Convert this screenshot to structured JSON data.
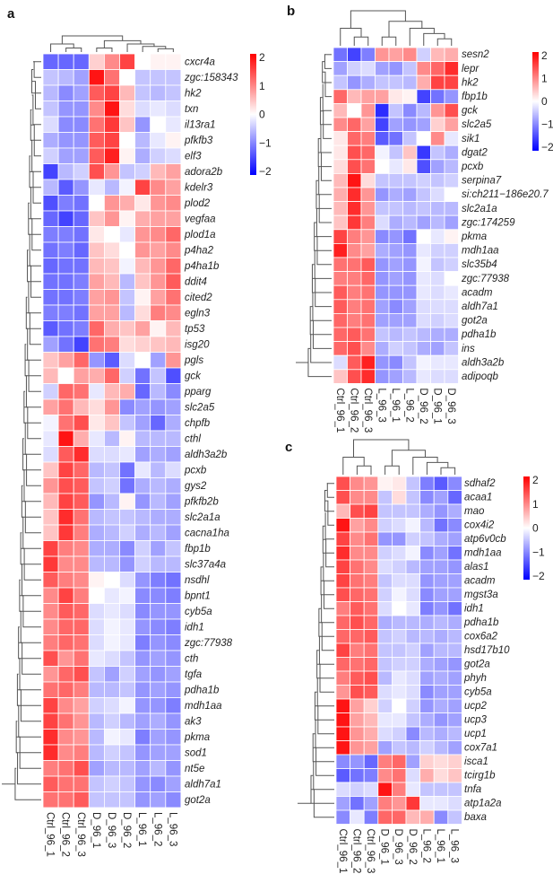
{
  "chart_data": [
    {
      "type": "heatmap",
      "panel": "a",
      "title": "a",
      "color_scale": {
        "min": -2,
        "max": 2,
        "ticks": [
          2,
          1,
          0,
          -1,
          -2
        ],
        "low": "#0000ff",
        "mid": "#ffffff",
        "high": "#ff0000"
      },
      "columns": [
        "Ctrl_96_1",
        "Ctrl_96_2",
        "Ctrl_96_3",
        "D_96_1",
        "D_96_3",
        "D_96_2",
        "L_96_1",
        "L_96_2",
        "L_96_3"
      ],
      "rows": [
        "cxcr4a",
        "zgc:158343",
        "hk2",
        "txn",
        "il13ra1",
        "pfkfb3",
        "elf3",
        "adora2b",
        "kdelr3",
        "plod2",
        "vegfaa",
        "plod1a",
        "p4ha2",
        "p4ha1b",
        "ddit4",
        "cited2",
        "egln3",
        "tp53",
        "isg20",
        "pgls",
        "gck",
        "pparg",
        "slc2a5",
        "chpfb",
        "cthl",
        "aldh3a2b",
        "pcxb",
        "gys2",
        "pfkfb2b",
        "slc2a1a",
        "cacna1ha",
        "fbp1b",
        "slc37a4a",
        "nsdhl",
        "bpnt1",
        "cyb5a",
        "idh1",
        "zgc:77938",
        "cth",
        "tgfa",
        "pdha1b",
        "mdh1aa",
        "ak3",
        "pkma",
        "sod1",
        "nt5e",
        "aldh7a1",
        "got2a"
      ],
      "values": [
        [
          -1.3,
          -1.3,
          -1.3,
          0.4,
          1.0,
          1.6,
          0.0,
          0.1,
          0.1
        ],
        [
          -0.5,
          -0.6,
          -0.8,
          2.0,
          1.2,
          0.0,
          -0.5,
          -0.5,
          -0.5
        ],
        [
          -0.6,
          -1.0,
          -0.8,
          1.4,
          1.6,
          0.6,
          -0.5,
          -0.6,
          -0.5
        ],
        [
          -0.5,
          -0.9,
          -0.9,
          1.0,
          2.1,
          0.3,
          -0.3,
          -0.2,
          -0.3
        ],
        [
          -0.3,
          -1.0,
          -1.0,
          1.2,
          1.7,
          0.5,
          -0.9,
          0.0,
          -0.2
        ],
        [
          -0.7,
          -0.9,
          -0.9,
          1.4,
          1.6,
          0.0,
          -0.6,
          -0.2,
          0.1
        ],
        [
          -0.4,
          -0.8,
          -0.8,
          1.4,
          1.9,
          0.1,
          -0.7,
          -0.4,
          -0.3
        ],
        [
          -1.6,
          -0.6,
          -0.4,
          1.5,
          0.9,
          -0.5,
          -0.4,
          0.6,
          0.8
        ],
        [
          -0.6,
          -1.4,
          -0.9,
          -0.2,
          -0.6,
          -0.1,
          1.6,
          1.0,
          0.8
        ],
        [
          -1.5,
          -1.1,
          -1.2,
          0.0,
          0.9,
          0.7,
          0.2,
          0.9,
          1.0
        ],
        [
          -1.3,
          -1.6,
          -1.3,
          0.5,
          0.9,
          0.1,
          0.7,
          0.8,
          0.8
        ],
        [
          -1.1,
          -1.1,
          -1.2,
          0.2,
          0.0,
          -0.2,
          0.9,
          1.0,
          1.3
        ],
        [
          -1.2,
          -1.1,
          -1.3,
          0.5,
          0.3,
          0.0,
          0.9,
          0.8,
          1.0
        ],
        [
          -1.3,
          -1.2,
          -1.2,
          0.6,
          0.5,
          -0.1,
          0.6,
          0.9,
          1.3
        ],
        [
          -1.2,
          -1.2,
          -1.1,
          0.8,
          0.6,
          -0.6,
          0.5,
          0.9,
          1.4
        ],
        [
          -1.2,
          -1.2,
          -1.1,
          0.8,
          0.9,
          -0.5,
          0.1,
          0.8,
          1.2
        ],
        [
          -1.1,
          -1.1,
          -1.2,
          0.8,
          0.8,
          -0.6,
          0.3,
          1.1,
          1.0
        ],
        [
          -1.4,
          -1.2,
          -1.1,
          1.3,
          0.7,
          0.5,
          0.8,
          0.1,
          0.6
        ],
        [
          -0.8,
          -1.2,
          -1.6,
          1.2,
          1.1,
          0.3,
          0.4,
          0.5,
          0.6
        ],
        [
          0.5,
          0.8,
          1.3,
          -0.9,
          -1.4,
          -0.3,
          0.0,
          -0.8,
          0.9
        ],
        [
          0.6,
          0.0,
          0.8,
          0.7,
          1.3,
          -0.4,
          -1.2,
          -0.5,
          -1.5
        ],
        [
          -0.4,
          1.3,
          1.2,
          -0.2,
          0.6,
          0.7,
          -1.3,
          -0.6,
          -1.0
        ],
        [
          0.8,
          1.2,
          0.6,
          0.3,
          0.9,
          -1.0,
          -0.8,
          -0.9,
          -0.8
        ],
        [
          -0.1,
          1.2,
          1.5,
          0.2,
          0.5,
          -0.5,
          -0.8,
          -1.3,
          -0.7
        ],
        [
          -0.2,
          2.0,
          0.7,
          -0.2,
          -0.6,
          0.1,
          -0.6,
          -0.6,
          -0.6
        ],
        [
          -0.3,
          1.4,
          1.8,
          -0.3,
          -0.3,
          -0.2,
          -0.8,
          -0.7,
          -0.8
        ],
        [
          0.5,
          1.6,
          1.3,
          -0.6,
          -0.5,
          -1.2,
          -0.2,
          -0.6,
          -0.3
        ],
        [
          0.9,
          1.5,
          1.4,
          -0.5,
          -0.4,
          -1.2,
          -0.7,
          -0.6,
          -0.7
        ],
        [
          0.6,
          1.6,
          1.4,
          -0.9,
          -0.6,
          0.1,
          -0.9,
          -0.6,
          -0.8
        ],
        [
          0.5,
          1.8,
          1.2,
          -0.6,
          -0.5,
          -0.5,
          -0.6,
          -0.7,
          -0.7
        ],
        [
          0.5,
          1.7,
          1.1,
          -0.7,
          -0.6,
          -0.4,
          -0.7,
          -0.6,
          -0.8
        ],
        [
          1.6,
          1.1,
          1.0,
          -0.7,
          -0.7,
          -1.0,
          -0.4,
          -0.8,
          -0.5
        ],
        [
          1.7,
          1.0,
          1.0,
          -0.6,
          -0.6,
          -0.9,
          -0.4,
          -0.6,
          -0.6
        ],
        [
          1.4,
          1.1,
          1.0,
          0.1,
          0.0,
          -0.3,
          -0.9,
          -1.1,
          -1.2
        ],
        [
          1.0,
          1.6,
          1.1,
          0.0,
          -0.2,
          -0.1,
          -1.0,
          -1.0,
          -1.1
        ],
        [
          1.0,
          1.4,
          1.3,
          -0.3,
          -0.2,
          -0.3,
          -1.0,
          -0.9,
          -0.9
        ],
        [
          1.0,
          1.3,
          1.3,
          -0.3,
          -0.1,
          -0.2,
          -0.9,
          -1.0,
          -1.1
        ],
        [
          1.1,
          1.3,
          1.2,
          -0.3,
          -0.1,
          -0.2,
          -1.1,
          -0.9,
          -1.0
        ],
        [
          1.5,
          0.9,
          1.2,
          -0.2,
          -0.3,
          -0.5,
          -0.9,
          -0.8,
          -0.9
        ],
        [
          0.9,
          1.3,
          1.5,
          -0.5,
          -0.8,
          -0.4,
          -0.8,
          -0.9,
          -0.8
        ],
        [
          1.2,
          1.3,
          1.1,
          -0.6,
          -0.6,
          -0.5,
          -0.9,
          -0.8,
          -0.9
        ],
        [
          1.6,
          1.0,
          0.8,
          -0.4,
          -0.3,
          -0.1,
          -0.9,
          -0.9,
          -1.1
        ],
        [
          1.6,
          1.2,
          0.9,
          -0.6,
          -0.4,
          -0.6,
          -0.8,
          -0.7,
          -0.9
        ],
        [
          1.8,
          1.0,
          0.9,
          -0.6,
          -0.1,
          -0.2,
          -1.1,
          -0.8,
          -0.9
        ],
        [
          1.8,
          1.0,
          1.1,
          -0.6,
          -0.4,
          -0.5,
          -0.9,
          -0.8,
          -0.8
        ],
        [
          1.1,
          1.2,
          1.5,
          -0.8,
          -0.6,
          -0.6,
          -0.8,
          -0.6,
          -0.9
        ],
        [
          1.4,
          1.2,
          1.2,
          -0.5,
          -0.4,
          -0.5,
          -0.9,
          -1.0,
          -0.8
        ],
        [
          1.2,
          1.2,
          1.4,
          -0.5,
          -0.5,
          -0.5,
          -0.9,
          -0.8,
          -1.0
        ]
      ]
    },
    {
      "type": "heatmap",
      "panel": "b",
      "title": "b",
      "color_scale": {
        "min": -2,
        "max": 2,
        "ticks": [
          2,
          1,
          0,
          -1,
          -2
        ],
        "low": "#0000ff",
        "mid": "#ffffff",
        "high": "#ff0000"
      },
      "columns": [
        "Ctrl_96_1",
        "Ctrl_96_2",
        "Ctrl_96_3",
        "L_96_3",
        "L_96_1",
        "L_96_2",
        "D_96_2",
        "D_96_1",
        "D_96_3"
      ],
      "rows": [
        "sesn2",
        "lepr",
        "hk2",
        "fbp1b",
        "gck",
        "slc2a5",
        "sik1",
        "dgat2",
        "pcxb",
        "serpina7",
        "si:ch211−186e20.7",
        "slc2a1a",
        "zgc:174259",
        "pkma",
        "mdh1aa",
        "slc35b4",
        "zgc:77938",
        "acadm",
        "aldh7a1",
        "got2a",
        "pdha1b",
        "ins",
        "aldh3a2b",
        "adipoqb"
      ],
      "values": [
        [
          -1.2,
          -1.6,
          -1.1,
          0.9,
          0.8,
          1.0,
          -0.4,
          0.6,
          0.7
        ],
        [
          -0.8,
          -0.4,
          -0.3,
          -0.8,
          -0.9,
          -0.5,
          1.0,
          1.3,
          1.8
        ],
        [
          -0.5,
          -0.9,
          -0.7,
          -0.5,
          -0.5,
          -0.6,
          0.7,
          1.6,
          1.6
        ],
        [
          1.3,
          0.6,
          0.8,
          0.8,
          0.2,
          0.1,
          -1.6,
          -1.2,
          -0.9
        ],
        [
          0.6,
          0.0,
          0.9,
          -1.8,
          -0.5,
          -1.0,
          -0.6,
          0.9,
          1.5
        ],
        [
          1.0,
          1.3,
          0.8,
          -1.6,
          -0.8,
          -0.9,
          -0.8,
          0.4,
          0.8
        ],
        [
          0.2,
          1.3,
          1.1,
          -1.4,
          -1.2,
          -0.5,
          0.0,
          1.0,
          -0.2
        ],
        [
          0.2,
          1.5,
          1.3,
          -0.1,
          -0.5,
          0.5,
          -1.7,
          -0.5,
          -0.7
        ],
        [
          0.3,
          1.5,
          1.2,
          0.0,
          -0.2,
          0.2,
          -1.5,
          -0.8,
          -0.6
        ],
        [
          0.6,
          2.2,
          0.3,
          -0.5,
          -0.5,
          -0.5,
          -0.4,
          -0.5,
          -0.4
        ],
        [
          0.7,
          1.8,
          0.9,
          -0.9,
          -0.7,
          -0.8,
          -0.5,
          -0.3,
          0.0
        ],
        [
          0.6,
          1.8,
          0.9,
          -0.5,
          -0.5,
          -0.6,
          -0.5,
          -0.6,
          -0.6
        ],
        [
          0.5,
          1.7,
          1.1,
          -0.3,
          -0.7,
          -0.6,
          -0.8,
          -0.6,
          -0.8
        ],
        [
          1.6,
          1.1,
          0.9,
          -1.0,
          -0.9,
          -1.2,
          0.0,
          -0.2,
          0.1
        ],
        [
          1.9,
          1.0,
          0.8,
          -0.7,
          -0.8,
          -0.9,
          -0.2,
          -0.4,
          -0.4
        ],
        [
          1.2,
          1.2,
          1.4,
          -0.9,
          -0.8,
          -0.9,
          -0.1,
          -0.5,
          -0.4
        ],
        [
          1.1,
          1.1,
          1.3,
          -0.9,
          -0.8,
          -0.9,
          -0.2,
          -0.3,
          0.0
        ],
        [
          1.4,
          1.1,
          1.2,
          -0.9,
          -0.9,
          -0.9,
          -0.2,
          -0.3,
          -0.2
        ],
        [
          1.4,
          1.1,
          1.2,
          -0.8,
          -1.0,
          -0.8,
          -0.3,
          -0.3,
          -0.3
        ],
        [
          1.3,
          1.1,
          1.2,
          -0.8,
          -0.8,
          -0.8,
          -0.3,
          -0.4,
          -0.3
        ],
        [
          1.3,
          1.4,
          1.2,
          -0.5,
          -0.6,
          -0.5,
          -0.6,
          -0.7,
          -0.7
        ],
        [
          1.3,
          1.5,
          1.0,
          -0.7,
          -0.4,
          -0.5,
          -0.7,
          -0.8,
          -0.5
        ],
        [
          -0.3,
          1.4,
          1.9,
          -0.9,
          -1.0,
          -0.5,
          -0.1,
          -0.2,
          -0.2
        ],
        [
          0.5,
          1.5,
          1.8,
          -0.9,
          -0.8,
          -0.6,
          -0.2,
          -0.3,
          -0.3
        ]
      ]
    },
    {
      "type": "heatmap",
      "panel": "c",
      "title": "c",
      "color_scale": {
        "min": -2,
        "max": 2,
        "ticks": [
          2,
          1,
          0,
          -1,
          -2
        ],
        "low": "#0000ff",
        "mid": "#ffffff",
        "high": "#ff0000"
      },
      "columns": [
        "Ctrl_96_1",
        "Ctrl_96_2",
        "Ctrl_96_3",
        "D_96_1",
        "D_96_3",
        "D_96_2",
        "L_96_2",
        "L_96_1",
        "L_96_3"
      ],
      "rows": [
        "sdhaf2",
        "acaa1",
        "mao",
        "cox4i2",
        "atp6v0cb",
        "mdh1aa",
        "alas1",
        "acadm",
        "mgst3a",
        "idh1",
        "pdha1b",
        "cox6a2",
        "hsd17b10",
        "got2a",
        "phyh",
        "cyb5a",
        "ucp2",
        "ucp3",
        "ucp1",
        "cox7a1",
        "isca1",
        "tcirg1b",
        "tnfa",
        "atp1a2a",
        "baxa"
      ],
      "values": [
        [
          1.5,
          1.0,
          0.9,
          0.1,
          0.2,
          -0.5,
          -1.1,
          -1.4,
          -1.0
        ],
        [
          1.5,
          1.0,
          1.0,
          -0.5,
          0.3,
          -0.5,
          -1.0,
          -0.8,
          -1.3
        ],
        [
          0.6,
          1.5,
          1.6,
          -0.5,
          -0.5,
          -0.5,
          -0.7,
          -0.9,
          -0.7
        ],
        [
          2.0,
          0.8,
          1.0,
          -0.4,
          -0.3,
          -0.1,
          -0.6,
          -1.2,
          -1.0
        ],
        [
          1.6,
          1.0,
          1.2,
          -0.9,
          -0.9,
          -0.4,
          -0.5,
          -0.7,
          -0.8
        ],
        [
          1.8,
          1.0,
          1.0,
          -0.4,
          -0.3,
          -0.1,
          -1.0,
          -0.8,
          -1.2
        ],
        [
          1.6,
          1.2,
          1.0,
          -0.3,
          -0.4,
          -0.6,
          -0.8,
          -0.8,
          -0.9
        ],
        [
          1.6,
          1.2,
          1.1,
          -0.5,
          -0.3,
          -0.3,
          -0.9,
          -0.8,
          -0.8
        ],
        [
          1.5,
          1.3,
          1.2,
          -0.4,
          -0.1,
          -0.3,
          -1.0,
          -0.8,
          -0.8
        ],
        [
          1.1,
          1.4,
          1.2,
          -0.3,
          0.0,
          -0.2,
          -1.1,
          -0.9,
          -1.2
        ],
        [
          1.3,
          1.5,
          1.3,
          -0.7,
          -0.6,
          -0.6,
          -0.7,
          -0.6,
          -0.7
        ],
        [
          1.3,
          1.3,
          1.4,
          -0.5,
          -0.4,
          -0.6,
          -0.6,
          -0.7,
          -0.6
        ],
        [
          1.6,
          1.1,
          1.2,
          -0.5,
          -0.5,
          -0.4,
          -0.8,
          -0.6,
          -0.6
        ],
        [
          1.3,
          1.2,
          1.3,
          -0.5,
          -0.4,
          -0.4,
          -0.7,
          -0.8,
          -0.9
        ],
        [
          1.1,
          1.4,
          1.5,
          -0.6,
          -0.2,
          -0.3,
          -0.8,
          -0.7,
          -0.8
        ],
        [
          0.9,
          1.5,
          1.4,
          -0.3,
          -0.2,
          -0.3,
          -1.0,
          -0.8,
          -0.8
        ],
        [
          2.1,
          0.8,
          0.4,
          -0.4,
          0.0,
          -0.4,
          -0.9,
          -0.7,
          -0.8
        ],
        [
          2.0,
          0.8,
          0.6,
          -0.2,
          -0.2,
          -0.5,
          -0.7,
          -0.9,
          -0.8
        ],
        [
          2.0,
          0.9,
          0.7,
          -0.3,
          -0.4,
          -1.0,
          -0.6,
          -0.7,
          -0.6
        ],
        [
          2.0,
          0.9,
          0.8,
          -0.8,
          -0.5,
          -0.6,
          -0.4,
          -0.6,
          -0.8
        ],
        [
          -1.0,
          -0.9,
          -1.3,
          1.1,
          1.3,
          -0.8,
          0.4,
          0.3,
          0.4
        ],
        [
          -1.4,
          -1.2,
          -1.1,
          1.0,
          1.2,
          -0.3,
          0.7,
          0.3,
          0.5
        ],
        [
          -0.3,
          -0.4,
          -0.3,
          2.3,
          1.1,
          -0.2,
          -0.5,
          -0.5,
          -0.5
        ],
        [
          -0.8,
          -1.2,
          -0.8,
          1.1,
          0.9,
          1.7,
          -0.2,
          -0.2,
          -0.3
        ],
        [
          -1.0,
          -0.2,
          -1.1,
          1.3,
          1.3,
          0.6,
          0.7,
          -1.0,
          -0.5
        ]
      ]
    }
  ]
}
